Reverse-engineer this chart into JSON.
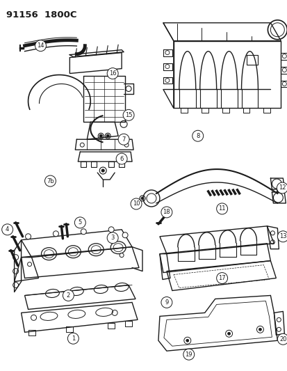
{
  "title": "91156  1800C",
  "bg_color": "#ffffff",
  "line_color": "#1a1a1a",
  "fig_width": 4.14,
  "fig_height": 5.33,
  "dpi": 100
}
